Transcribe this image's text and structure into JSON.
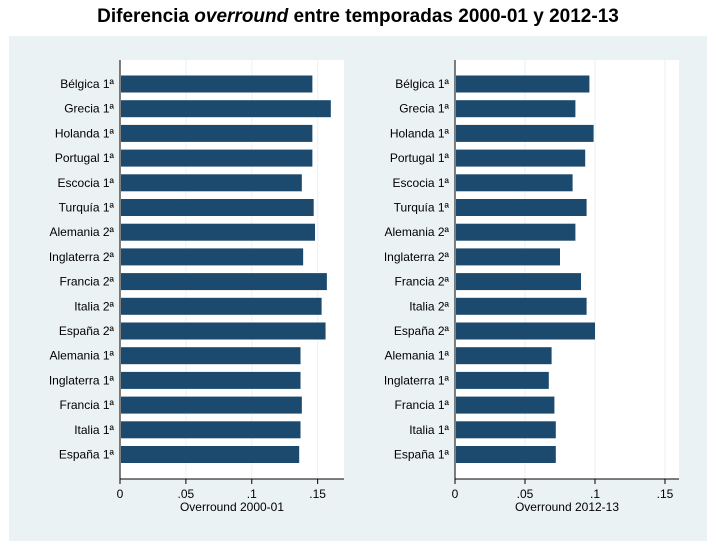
{
  "title": {
    "prefix": "Diferencia ",
    "italic": "overround",
    "suffix": " entre temporadas 2000-01 y 2012-13"
  },
  "colors": {
    "bar": "#1c4a6e",
    "panel_bg": "#ffffff",
    "outer_bg": "#eaf2f3",
    "grid": "#eaf2f3"
  },
  "chart_data": [
    {
      "type": "bar",
      "orientation": "horizontal",
      "xlabel": "Overround 2000-01",
      "xlim": [
        0,
        0.17
      ],
      "xticks": [
        {
          "value": 0,
          "label": "0"
        },
        {
          "value": 0.05,
          "label": ".05"
        },
        {
          "value": 0.1,
          "label": ".1"
        },
        {
          "value": 0.15,
          "label": ".15"
        }
      ],
      "categories": [
        "Bélgica 1ª",
        "Grecia 1ª",
        "Holanda 1ª",
        "Portugal 1ª",
        "Escocia 1ª",
        "Turquía 1ª",
        "Alemania 2ª",
        "Inglaterra 2ª",
        "Francia 2ª",
        "Italia 2ª",
        "España 2ª",
        "Alemania 1ª",
        "Inglaterra 1ª",
        "Francia 1ª",
        "Italia 1ª",
        "España 1ª"
      ],
      "values": [
        0.146,
        0.16,
        0.146,
        0.146,
        0.138,
        0.147,
        0.148,
        0.139,
        0.157,
        0.153,
        0.156,
        0.137,
        0.137,
        0.138,
        0.137,
        0.136
      ]
    },
    {
      "type": "bar",
      "orientation": "horizontal",
      "xlabel": "Overround 2012-13",
      "xlim": [
        0,
        0.16
      ],
      "xticks": [
        {
          "value": 0,
          "label": "0"
        },
        {
          "value": 0.05,
          "label": ".05"
        },
        {
          "value": 0.1,
          "label": ".1"
        },
        {
          "value": 0.15,
          "label": ".15"
        }
      ],
      "categories": [
        "Bélgica 1ª",
        "Grecia 1ª",
        "Holanda 1ª",
        "Portugal 1ª",
        "Escocia 1ª",
        "Turquía 1ª",
        "Alemania 2ª",
        "Inglaterra 2ª",
        "Francia 2ª",
        "Italia 2ª",
        "España 2ª",
        "Alemania 1ª",
        "Inglaterra 1ª",
        "Francia 1ª",
        "Italia 1ª",
        "España 1ª"
      ],
      "values": [
        0.096,
        0.086,
        0.099,
        0.093,
        0.084,
        0.094,
        0.086,
        0.075,
        0.09,
        0.094,
        0.1,
        0.069,
        0.067,
        0.071,
        0.072,
        0.072
      ]
    }
  ]
}
